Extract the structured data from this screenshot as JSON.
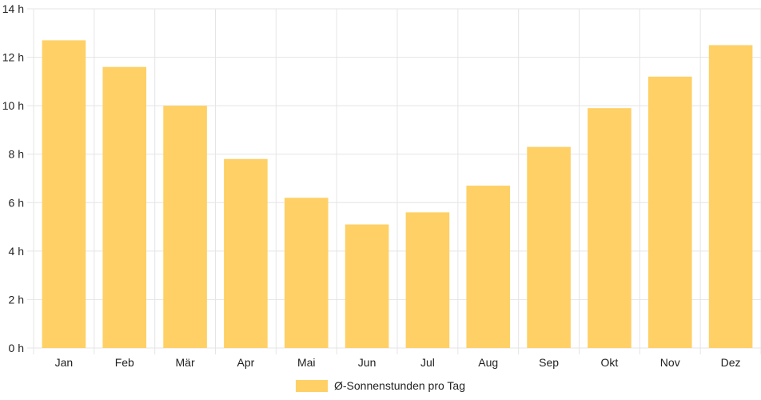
{
  "chart_data": {
    "type": "bar",
    "categories": [
      "Jan",
      "Feb",
      "Mär",
      "Apr",
      "Mai",
      "Jun",
      "Jul",
      "Aug",
      "Sep",
      "Okt",
      "Nov",
      "Dez"
    ],
    "series": [
      {
        "name": "Ø-Sonnenstunden pro Tag",
        "values": [
          12.7,
          11.6,
          10.0,
          7.8,
          6.2,
          5.1,
          5.6,
          6.7,
          8.3,
          9.9,
          11.2,
          12.5
        ],
        "color": "#fed065"
      }
    ],
    "y_ticks": [
      "0 h",
      "2 h",
      "4 h",
      "6 h",
      "8 h",
      "10 h",
      "12 h",
      "14 h"
    ],
    "ylim": [
      0,
      14
    ],
    "grid": true,
    "legend_position": "bottom",
    "grid_color": "#e5e5e5"
  }
}
